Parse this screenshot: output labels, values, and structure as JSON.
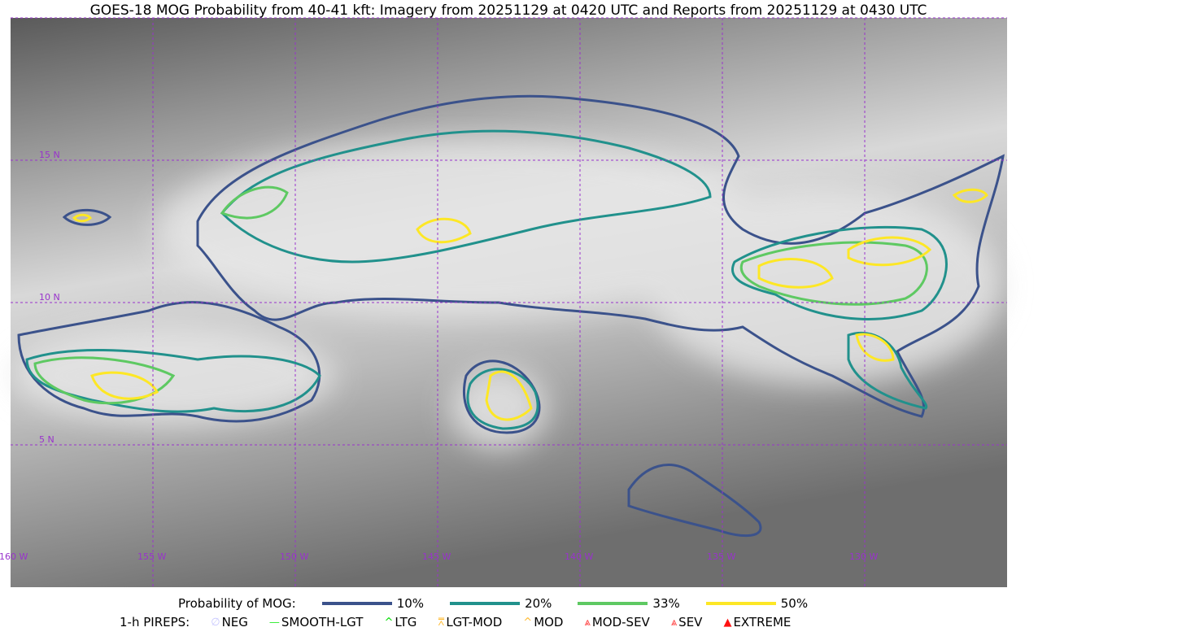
{
  "title": "GOES-18 MOG Probability from 40-41 kft: Imagery from 20251129 at 0420 UTC and Reports from 20251129 at 0430 UTC",
  "map": {
    "lat_labels": [
      "15 N",
      "10 N",
      "5 N"
    ],
    "lon_labels": [
      "160 W",
      "155 W",
      "150 W",
      "145 W",
      "140 W",
      "135 W",
      "130 W"
    ],
    "grid_color": "#9933cc"
  },
  "legend": {
    "probability_label": "Probability of MOG:",
    "levels": [
      {
        "label": "10%",
        "color": "#3b528b"
      },
      {
        "label": "20%",
        "color": "#21918c"
      },
      {
        "label": "33%",
        "color": "#5ec962"
      },
      {
        "label": "50%",
        "color": "#fde725"
      }
    ],
    "pireps_label": "1-h PIREPS:",
    "pireps": [
      {
        "label": "NEG",
        "icon": "neg-icon",
        "color": "#c8c8ff",
        "glyph": "∅"
      },
      {
        "label": "SMOOTH-LGT",
        "icon": "line-icon",
        "color": "#33ee33",
        "glyph": "—"
      },
      {
        "label": "LTG",
        "icon": "caret-icon",
        "color": "#00dd00",
        "glyph": "^"
      },
      {
        "label": "LGT-MOD",
        "icon": "caret-underline-icon",
        "color": "#ffbb33",
        "glyph": "⩞"
      },
      {
        "label": "MOD",
        "icon": "caret-icon",
        "color": "#ffbb33",
        "glyph": "^"
      },
      {
        "label": "MOD-SEV",
        "icon": "double-caret-icon",
        "color": "#ff3333",
        "glyph": "⩓"
      },
      {
        "label": "SEV",
        "icon": "double-caret-icon",
        "color": "#ff3333",
        "glyph": "⩓"
      },
      {
        "label": "EXTREME",
        "icon": "triangle-icon",
        "color": "#ff1111",
        "glyph": "▲"
      }
    ]
  }
}
